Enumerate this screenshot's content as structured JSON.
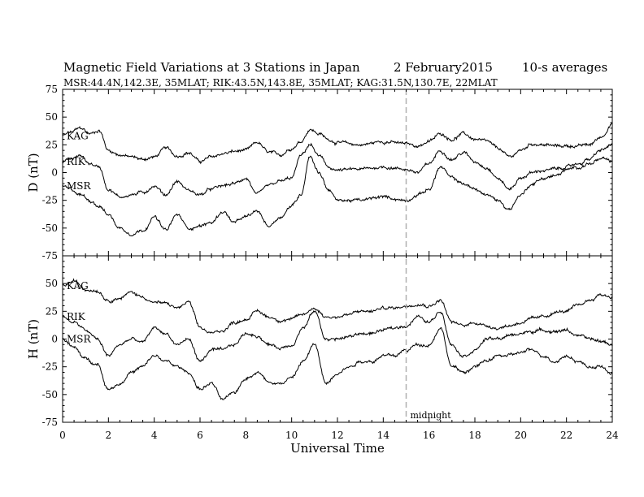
{
  "title": {
    "main": "Magnetic Field Variations at 3 Stations in Japan",
    "date": "2   February2015",
    "averaging": "10-s averages"
  },
  "subtitle": "MSR:44.4N,142.3E, 35MLAT;  RIK:43.5N,143.8E, 35MLAT;  KAG:31.5N,130.7E, 22MLAT",
  "colors": {
    "trace": "#000000",
    "midnight_line": "#b0b0b0",
    "frame": "#000000"
  },
  "chart_data": [
    {
      "type": "line",
      "ylabel": "D (nT)",
      "xlim": [
        0,
        24
      ],
      "ylim": [
        -75,
        75
      ],
      "yticks": [
        75,
        50,
        25,
        0,
        -25,
        -50,
        -75
      ],
      "grid": false,
      "series": [
        {
          "name": "KAG",
          "x": [
            0,
            0.3,
            0.8,
            1.2,
            1.6,
            2,
            2.5,
            3,
            3.5,
            4,
            4.5,
            5,
            5.5,
            6,
            6.5,
            7,
            7.5,
            8,
            8.5,
            9,
            9.5,
            10,
            10.4,
            10.8,
            11.2,
            11.6,
            12,
            13,
            14,
            15,
            15.5,
            16,
            16.5,
            17,
            17.5,
            18,
            18.5,
            19,
            19.5,
            20,
            20.5,
            21,
            21.5,
            22,
            22.5,
            23,
            23.5,
            24
          ],
          "y": [
            33,
            36,
            40,
            35,
            38,
            20,
            16,
            14,
            12,
            14,
            22,
            15,
            18,
            10,
            14,
            17,
            19,
            20,
            27,
            18,
            16,
            22,
            28,
            39,
            35,
            30,
            27,
            25,
            28,
            26,
            24,
            28,
            35,
            30,
            35,
            30,
            28,
            22,
            14,
            20,
            26,
            25,
            24,
            24,
            24,
            25,
            32,
            44
          ]
        },
        {
          "name": "RIK",
          "x": [
            0,
            0.3,
            0.8,
            1.2,
            1.6,
            2,
            2.5,
            3,
            3.5,
            4,
            4.5,
            5,
            5.5,
            6,
            6.5,
            7,
            7.5,
            8,
            8.5,
            9,
            9.5,
            10,
            10.4,
            10.8,
            11.2,
            11.6,
            12,
            13,
            14,
            15,
            15.5,
            16,
            16.5,
            17,
            17.5,
            18,
            18.5,
            19,
            19.5,
            20,
            20.5,
            21,
            21.5,
            22,
            22.5,
            23,
            23.5,
            24
          ],
          "y": [
            10,
            12,
            15,
            8,
            5,
            -15,
            -22,
            -20,
            -18,
            -12,
            -20,
            -8,
            -16,
            -20,
            -15,
            -12,
            -10,
            -5,
            -20,
            -12,
            -8,
            -5,
            15,
            25,
            15,
            5,
            2,
            3,
            5,
            3,
            0,
            8,
            20,
            12,
            18,
            10,
            5,
            -5,
            -15,
            -5,
            0,
            2,
            3,
            5,
            8,
            12,
            20,
            25
          ]
        },
        {
          "name": "MSR",
          "x": [
            0,
            0.3,
            0.8,
            1.2,
            1.6,
            2,
            2.5,
            3,
            3.5,
            4,
            4.5,
            5,
            5.5,
            6,
            6.5,
            7,
            7.5,
            8,
            8.5,
            9,
            9.5,
            10,
            10.4,
            10.8,
            11.2,
            11.6,
            12,
            13,
            14,
            15,
            15.5,
            16,
            16.5,
            17,
            17.5,
            18,
            18.5,
            19,
            19.5,
            20,
            20.5,
            21,
            21.5,
            22,
            22.5,
            23,
            23.5,
            24
          ],
          "y": [
            -12,
            -15,
            -20,
            -25,
            -30,
            -38,
            -50,
            -55,
            -52,
            -40,
            -52,
            -38,
            -50,
            -48,
            -45,
            -35,
            -45,
            -40,
            -35,
            -48,
            -40,
            -30,
            -20,
            15,
            0,
            -15,
            -25,
            -25,
            -22,
            -25,
            -20,
            -15,
            5,
            -5,
            -10,
            -15,
            -20,
            -25,
            -33,
            -20,
            -10,
            -5,
            -3,
            2,
            5,
            8,
            12,
            10
          ]
        }
      ]
    },
    {
      "type": "line",
      "ylabel": "H (nT)",
      "xlabel": "Universal Time",
      "xlim": [
        0,
        24
      ],
      "ylim": [
        -75,
        75
      ],
      "yticks": [
        50,
        25,
        0,
        -25,
        -50,
        -75
      ],
      "xticks": [
        0,
        2,
        4,
        6,
        8,
        10,
        12,
        14,
        16,
        18,
        20,
        22,
        24
      ],
      "grid": false,
      "series": [
        {
          "name": "KAG",
          "x": [
            0,
            0.5,
            1,
            1.5,
            2,
            2.5,
            3,
            3.5,
            4,
            4.5,
            5,
            5.5,
            6,
            6.5,
            7,
            7.5,
            8,
            8.5,
            9,
            9.5,
            10,
            10.5,
            11,
            11.5,
            12,
            12.5,
            13,
            13.5,
            14,
            14.5,
            15,
            15.5,
            16,
            16.5,
            17,
            17.5,
            18,
            18.5,
            19,
            19.5,
            20,
            20.5,
            21,
            21.5,
            22,
            22.5,
            23,
            23.5,
            24
          ],
          "y": [
            48,
            52,
            45,
            44,
            35,
            37,
            42,
            38,
            33,
            32,
            28,
            33,
            10,
            5,
            8,
            15,
            18,
            25,
            20,
            17,
            18,
            22,
            28,
            20,
            20,
            22,
            25,
            25,
            28,
            28,
            30,
            32,
            30,
            35,
            15,
            12,
            15,
            12,
            10,
            12,
            15,
            18,
            20,
            24,
            25,
            30,
            35,
            40,
            38
          ]
        },
        {
          "name": "RIK",
          "x": [
            0,
            0.5,
            1,
            1.5,
            2,
            2.5,
            3,
            3.5,
            4,
            4.5,
            5,
            5.5,
            6,
            6.5,
            7,
            7.5,
            8,
            8.5,
            9,
            9.5,
            10,
            10.5,
            11,
            11.5,
            12,
            12.5,
            13,
            13.5,
            14,
            14.5,
            15,
            15.5,
            16,
            16.5,
            17,
            17.5,
            18,
            18.5,
            19,
            19.5,
            20,
            20.5,
            21,
            21.5,
            22,
            22.5,
            23,
            23.5,
            24
          ],
          "y": [
            20,
            15,
            8,
            0,
            -15,
            -5,
            0,
            -3,
            10,
            5,
            -5,
            0,
            -20,
            -10,
            -10,
            -5,
            5,
            3,
            -5,
            -8,
            -5,
            10,
            25,
            0,
            0,
            2,
            5,
            5,
            8,
            10,
            12,
            20,
            15,
            25,
            -5,
            -15,
            -10,
            0,
            0,
            3,
            5,
            7,
            8,
            7,
            8,
            3,
            0,
            -2,
            -5
          ]
        },
        {
          "name": "MSR",
          "x": [
            0,
            0.5,
            1,
            1.5,
            2,
            2.5,
            3,
            3.5,
            4,
            4.5,
            5,
            5.5,
            6,
            6.5,
            7,
            7.5,
            8,
            8.5,
            9,
            9.5,
            10,
            10.5,
            11,
            11.5,
            12,
            12.5,
            13,
            13.5,
            14,
            14.5,
            15,
            15.5,
            16,
            16.5,
            17,
            17.5,
            18,
            18.5,
            19,
            19.5,
            20,
            20.5,
            21,
            21.5,
            22,
            22.5,
            23,
            23.5,
            24
          ],
          "y": [
            0,
            -8,
            -18,
            -22,
            -45,
            -40,
            -30,
            -25,
            -15,
            -20,
            -25,
            -30,
            -45,
            -40,
            -55,
            -48,
            -35,
            -30,
            -38,
            -40,
            -35,
            -20,
            -5,
            -40,
            -30,
            -25,
            -20,
            -20,
            -15,
            -15,
            -10,
            -5,
            -5,
            10,
            -25,
            -30,
            -25,
            -20,
            -15,
            -15,
            -12,
            -10,
            -15,
            -20,
            -15,
            -20,
            -25,
            -25,
            -32
          ]
        }
      ]
    }
  ],
  "annotations": {
    "midnight_x": 15,
    "midnight_label": "midnight"
  }
}
